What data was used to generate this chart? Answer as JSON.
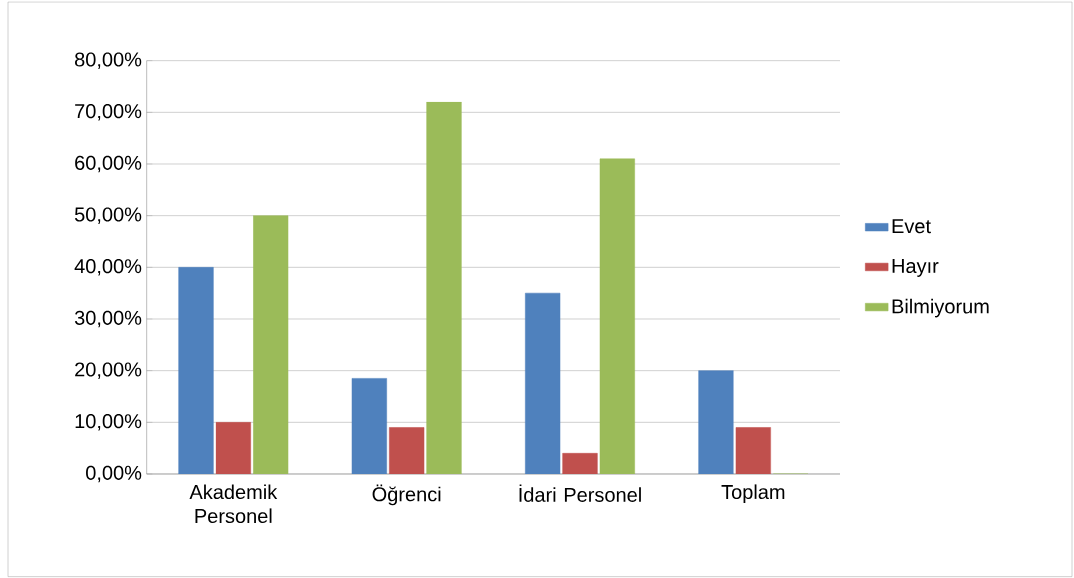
{
  "chart_data": {
    "type": "bar",
    "categories": [
      "Akademik Personel",
      "Öğrenci",
      "İdari Personel",
      "Toplam"
    ],
    "series": [
      {
        "name": "Evet",
        "color": "#4f81bd",
        "values": [
          40,
          18.5,
          35,
          20
        ]
      },
      {
        "name": "Hayır",
        "color": "#c0504d",
        "values": [
          10,
          9,
          4,
          9
        ]
      },
      {
        "name": "Bilmiyorum",
        "color": "#9bbb59",
        "values": [
          50,
          72,
          61,
          0
        ]
      }
    ],
    "ylim": [
      0,
      80
    ],
    "yticks": [
      {
        "value": 0,
        "label": "0,00%"
      },
      {
        "value": 10,
        "label": "10,00%"
      },
      {
        "value": 20,
        "label": "20,00%"
      },
      {
        "value": 30,
        "label": "30,00%"
      },
      {
        "value": 40,
        "label": "40,00%"
      },
      {
        "value": 50,
        "label": "50,00%"
      },
      {
        "value": 60,
        "label": "60,00%"
      },
      {
        "value": 70,
        "label": "70,00%"
      },
      {
        "value": 80,
        "label": "80,00%"
      }
    ],
    "grid": "y",
    "legend": "right"
  }
}
